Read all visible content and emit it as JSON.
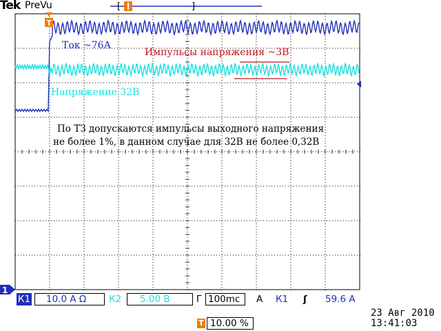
{
  "header": {
    "brand": "Tek",
    "mode": "PreVu"
  },
  "annotations": {
    "current_label": "Ток ~76А",
    "voltage_label": "Напряжение 32В",
    "pulse_label": "Импульсы напряжения ~3В",
    "note_line1": "По ТЗ допускаются импульсы выходного напряжения",
    "note_line2": "не более 1%, в данном случае для 32В не более 0,32В"
  },
  "markers": {
    "ground_marker": "1",
    "trigger_marker": "T"
  },
  "status": {
    "ch1_tag": "К1",
    "ch1_scale": "10.0 А Ω",
    "ch2_tag": "К2",
    "ch2_scale": "5.00 В",
    "timebase_prefix": "Г",
    "timebase_value": "100mc",
    "trigger_prefix": "А",
    "trigger_source": "К1",
    "trigger_slope_symbol": "ʃ",
    "trigger_level": "59.6 А",
    "trigger_position": "10.00 %",
    "date": "23 Авг  2010",
    "time": "13:41:03"
  },
  "colors": {
    "ch1": "#1f2fb8",
    "ch2": "#19e0e0",
    "annotation_red": "#c0141e",
    "grid": "#000000",
    "trigger_orange": "#f07d0a"
  }
}
